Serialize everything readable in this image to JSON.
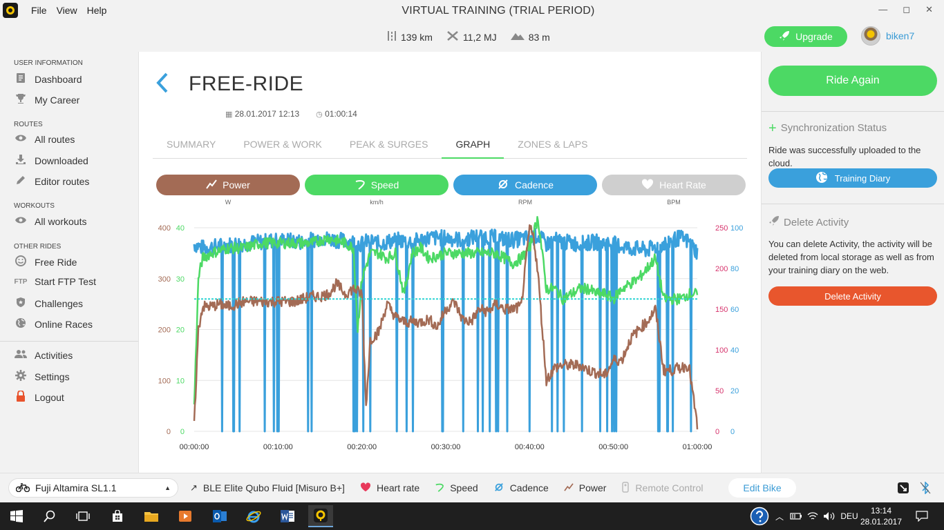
{
  "window": {
    "title": "VIRTUAL TRAINING (TRIAL PERIOD)",
    "menu": [
      "File",
      "View",
      "Help"
    ],
    "controls": [
      "—",
      "◻",
      "✕"
    ]
  },
  "header": {
    "stats": [
      {
        "icon": "distance-icon",
        "value": "139 km"
      },
      {
        "icon": "energy-icon",
        "value": "11,2 MJ"
      },
      {
        "icon": "elevation-icon",
        "value": "83 m"
      }
    ],
    "upgrade_label": "Upgrade",
    "username": "biken7"
  },
  "sidebar": {
    "sections": [
      {
        "title": "USER INFORMATION",
        "items": [
          {
            "label": "Dashboard",
            "icon": "dashboard-icon"
          },
          {
            "label": "My Career",
            "icon": "trophy-icon"
          }
        ]
      },
      {
        "title": "ROUTES",
        "items": [
          {
            "label": "All routes",
            "icon": "eye-icon"
          },
          {
            "label": "Downloaded",
            "icon": "download-icon"
          },
          {
            "label": "Editor routes",
            "icon": "edit-icon"
          }
        ]
      },
      {
        "title": "WORKOUTS",
        "items": [
          {
            "label": "All workouts",
            "icon": "eye-icon"
          }
        ]
      },
      {
        "title": "OTHER RIDES",
        "items": [
          {
            "label": "Free Ride",
            "icon": "smiley-icon"
          },
          {
            "label": "Start FTP Test",
            "icon": "ftp-icon",
            "icon_text": "FTP"
          },
          {
            "label": "Challenges",
            "icon": "badge-icon"
          },
          {
            "label": "Online Races",
            "icon": "globe-icon"
          }
        ]
      }
    ],
    "bottom_items": [
      {
        "label": "Activities",
        "icon": "people-icon"
      },
      {
        "label": "Settings",
        "icon": "gear-icon"
      },
      {
        "label": "Logout",
        "icon": "lock-icon"
      }
    ]
  },
  "main": {
    "title": "FREE-RIDE",
    "date": "28.01.2017 12:13",
    "duration": "01:00:14",
    "tabs": [
      "SUMMARY",
      "POWER & WORK",
      "PEAK & SURGES",
      "GRAPH",
      "ZONES & LAPS"
    ],
    "active_tab": "GRAPH",
    "pills": [
      {
        "label": "Power",
        "unit": "W",
        "color": "#a36b55",
        "icon": "power-icon"
      },
      {
        "label": "Speed",
        "unit": "km/h",
        "color": "#4cd964",
        "icon": "speed-icon"
      },
      {
        "label": "Cadence",
        "unit": "RPM",
        "color": "#3aa0dc",
        "icon": "cadence-icon"
      },
      {
        "label": "Heart Rate",
        "unit": "BPM",
        "color": "#cfcfcf",
        "icon": "heart-icon"
      }
    ]
  },
  "chart_data": {
    "type": "line",
    "title": "",
    "xlabel": "",
    "x_ticks": [
      "00:00:00",
      "00:10:00",
      "00:20:00",
      "00:30:00",
      "00:40:00",
      "00:50:00",
      "01:00:00"
    ],
    "x_range_min": [
      0,
      60
    ],
    "axes": {
      "power": {
        "ticks": [
          0,
          100,
          200,
          300,
          400
        ],
        "range": [
          0,
          400
        ],
        "color": "#a36b55"
      },
      "speed": {
        "ticks": [
          0,
          10,
          20,
          30,
          40
        ],
        "range": [
          0,
          40
        ],
        "color": "#4cd964"
      },
      "heart_rate": {
        "ticks": [
          0,
          50,
          100,
          150,
          200,
          250
        ],
        "range": [
          0,
          250
        ],
        "color": "#d6336c"
      },
      "cadence": {
        "ticks": [
          0,
          20,
          40,
          60,
          80,
          100
        ],
        "range": [
          0,
          100
        ],
        "color": "#3aa0dc"
      }
    },
    "avg_line_power": 260,
    "series": [
      {
        "name": "Cadence",
        "unit": "RPM",
        "color": "#3aa0dc",
        "x": [
          0,
          1,
          3,
          5,
          8,
          10,
          13,
          15,
          17,
          19,
          20,
          21,
          22,
          24,
          26,
          28,
          30,
          32,
          34,
          36,
          38,
          40,
          41,
          42,
          43,
          44,
          46,
          48,
          50,
          52,
          54,
          56,
          57,
          58,
          59,
          60
        ],
        "y": [
          92,
          90,
          91,
          92,
          93,
          94,
          93,
          95,
          94,
          93,
          92,
          94,
          92,
          94,
          93,
          95,
          95,
          94,
          96,
          95,
          94,
          95,
          96,
          92,
          94,
          93,
          92,
          93,
          92,
          90,
          89,
          92,
          94,
          95,
          93,
          88
        ]
      },
      {
        "name": "Speed",
        "unit": "km/h",
        "color": "#4cd964",
        "x": [
          0,
          0.5,
          1,
          2,
          4,
          6,
          8,
          10,
          12,
          14,
          16,
          18,
          19,
          19.5,
          20,
          21,
          22,
          23,
          24,
          25,
          26,
          27,
          28,
          30,
          32,
          34,
          36,
          38,
          39,
          40,
          41,
          42,
          43,
          44,
          45,
          46,
          47,
          48,
          49,
          50,
          51,
          52,
          53,
          54,
          55,
          56,
          57,
          58,
          59,
          60
        ],
        "y": [
          5,
          30,
          34,
          35,
          36,
          36,
          37,
          37,
          37,
          37,
          38,
          37,
          36,
          20,
          30,
          35,
          35,
          34,
          35,
          27,
          35,
          36,
          34,
          35,
          35,
          35,
          35,
          33,
          34,
          36,
          42,
          28,
          28,
          26,
          27,
          28,
          28,
          27,
          27,
          26,
          28,
          29,
          30,
          32,
          34,
          26,
          26,
          26,
          27,
          27
        ]
      },
      {
        "name": "Power",
        "unit": "W",
        "color": "#a36b55",
        "x": [
          0,
          0.5,
          1,
          2,
          3,
          4,
          5,
          6,
          8,
          10,
          12,
          14,
          15,
          16,
          17,
          18,
          19,
          20,
          20.5,
          21,
          22,
          23,
          24,
          25,
          26,
          27,
          28,
          29,
          30,
          31,
          32,
          33,
          34,
          35,
          36,
          37,
          38,
          39,
          40,
          40.5,
          41,
          42,
          43,
          44,
          45,
          46,
          47,
          48,
          49,
          50,
          51,
          52,
          53,
          54,
          55,
          56,
          57,
          58,
          59,
          60
        ],
        "y": [
          10,
          200,
          245,
          245,
          250,
          245,
          250,
          255,
          255,
          255,
          255,
          265,
          265,
          270,
          290,
          270,
          280,
          270,
          50,
          180,
          195,
          250,
          225,
          215,
          215,
          215,
          220,
          205,
          240,
          255,
          220,
          215,
          240,
          235,
          250,
          240,
          240,
          245,
          400,
          380,
          310,
          100,
          125,
          130,
          130,
          130,
          120,
          115,
          110,
          140,
          140,
          180,
          200,
          215,
          240,
          120,
          120,
          125,
          130,
          10
        ]
      }
    ]
  },
  "right_panel": {
    "ride_again": "Ride Again",
    "sync_title": "Synchronization Status",
    "sync_text": "Ride was successfully uploaded to the cloud.",
    "diary_button": "Training Diary",
    "delete_title": "Delete Activity",
    "delete_text": "You can delete Activity, the activity will be deleted from local storage as well as from your training diary on the web.",
    "delete_button": "Delete Activity"
  },
  "devices": {
    "bike": "Fuji Altamira SL1.1",
    "trainer": "BLE Elite Qubo Fluid [Misuro B+]",
    "heart_rate": "Heart rate",
    "speed": "Speed",
    "cadence": "Cadence",
    "power": "Power",
    "remote": "Remote Control",
    "edit_bike": "Edit Bike"
  },
  "taskbar": {
    "language": "DEU",
    "time": "13:14",
    "date": "28.01.2017"
  }
}
